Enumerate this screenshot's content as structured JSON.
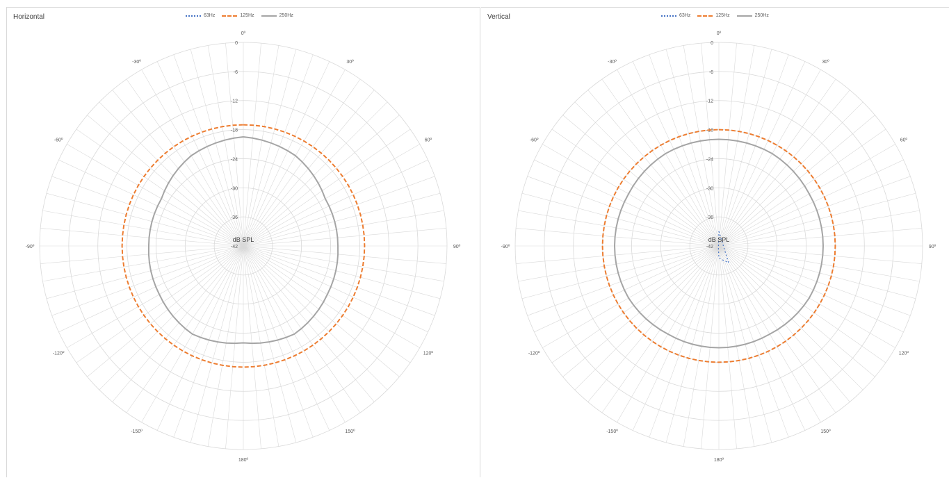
{
  "colors": {
    "63Hz": "#4472c4",
    "125Hz": "#ed7d31",
    "250Hz": "#a5a5a5",
    "grid": "#d9d9d9"
  },
  "chart_data": [
    {
      "type": "polar",
      "title": "Horizontal",
      "center_label": "dB SPL",
      "angle_labels": [
        "0º",
        "30º",
        "60º",
        "90º",
        "120º",
        "150º",
        "180º",
        "-150º",
        "-120º",
        "-90º",
        "-60º",
        "-30º"
      ],
      "angle_label_degrees": [
        0,
        30,
        60,
        90,
        120,
        150,
        180,
        -150,
        -120,
        -90,
        -60,
        -30
      ],
      "ring_labels": [
        "0",
        "-6",
        "-12",
        "-18",
        "-24",
        "-30",
        "-36",
        "-42"
      ],
      "rlim": [
        -42,
        0
      ],
      "series": [
        {
          "name": "63Hz",
          "style": "dotted",
          "angles": [
            0
          ],
          "values": [
            -42
          ]
        },
        {
          "name": "125Hz",
          "style": "dashed",
          "angles": [
            0,
            30,
            60,
            90,
            120,
            150,
            180,
            -150,
            -120,
            -90,
            -60,
            -30
          ],
          "values": [
            -17,
            -17,
            -17,
            -17,
            -17,
            -17,
            -17,
            -17,
            -17,
            -17,
            -17,
            -17
          ]
        },
        {
          "name": "250Hz",
          "style": "solid",
          "angles": [
            0,
            30,
            60,
            90,
            120,
            150,
            180,
            -150,
            -120,
            -90,
            -60,
            -30
          ],
          "values": [
            -19.5,
            -20.5,
            -22.5,
            -22.5,
            -22,
            -21,
            -22,
            -21,
            -22,
            -22.5,
            -22.5,
            -20.5
          ]
        }
      ]
    },
    {
      "type": "polar",
      "title": "Vertical",
      "center_label": "dB SPL",
      "angle_labels": [
        "0º",
        "30º",
        "60º",
        "90º",
        "120º",
        "150º",
        "180º",
        "-150º",
        "-120º",
        "-90º",
        "-60º",
        "-30º"
      ],
      "angle_label_degrees": [
        0,
        30,
        60,
        90,
        120,
        150,
        180,
        -150,
        -120,
        -90,
        -60,
        -30
      ],
      "ring_labels": [
        "0",
        "-6",
        "-12",
        "-18",
        "-24",
        "-30",
        "-36",
        "-42"
      ],
      "rlim": [
        -42,
        0
      ],
      "series": [
        {
          "name": "63Hz",
          "style": "dotted",
          "angles": [
            0,
            150,
            180,
            -170,
            0
          ],
          "values": [
            -39,
            -38,
            -39.5,
            -41.5,
            -39
          ]
        },
        {
          "name": "125Hz",
          "style": "dashed",
          "angles": [
            0,
            30,
            60,
            90,
            120,
            150,
            180,
            -150,
            -120,
            -90,
            -60,
            -30
          ],
          "values": [
            -18,
            -18,
            -18,
            -18,
            -18,
            -18,
            -18,
            -18,
            -18,
            -18,
            -18,
            -18
          ]
        },
        {
          "name": "250Hz",
          "style": "solid",
          "angles": [
            0,
            30,
            60,
            90,
            120,
            150,
            180,
            -150,
            -120,
            -90,
            -60,
            -30
          ],
          "values": [
            -20,
            -20,
            -20.5,
            -20.5,
            -20.5,
            -21,
            -21,
            -21,
            -20.5,
            -20.5,
            -20.5,
            -20
          ]
        }
      ]
    }
  ],
  "legend": [
    {
      "label": "63Hz"
    },
    {
      "label": "125Hz"
    },
    {
      "label": "250Hz"
    }
  ]
}
